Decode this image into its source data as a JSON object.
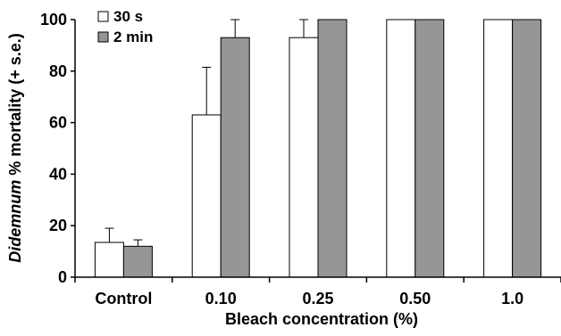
{
  "chart_data": {
    "type": "bar",
    "categories": [
      "Control",
      "0.10",
      "0.25",
      "0.50",
      "1.0"
    ],
    "series": [
      {
        "name": "30 s",
        "values": [
          13.5,
          63,
          93,
          100,
          100
        ],
        "errors": [
          5.5,
          18.5,
          7,
          0,
          0
        ],
        "color": "#ffffff"
      },
      {
        "name": "2 min",
        "values": [
          12,
          93,
          100,
          100,
          100
        ],
        "errors": [
          2.5,
          7,
          0,
          0,
          0
        ],
        "color": "#969696"
      }
    ],
    "xlabel": "Bleach concentration (%)",
    "ylabel_italic": "Didemnum",
    "ylabel_rest": " % mortality (+ s.e.)",
    "ylim": [
      0,
      100
    ],
    "yticks": [
      "0",
      "20",
      "40",
      "60",
      "80",
      "100"
    ],
    "grid": false,
    "legend_position": "top-left"
  }
}
